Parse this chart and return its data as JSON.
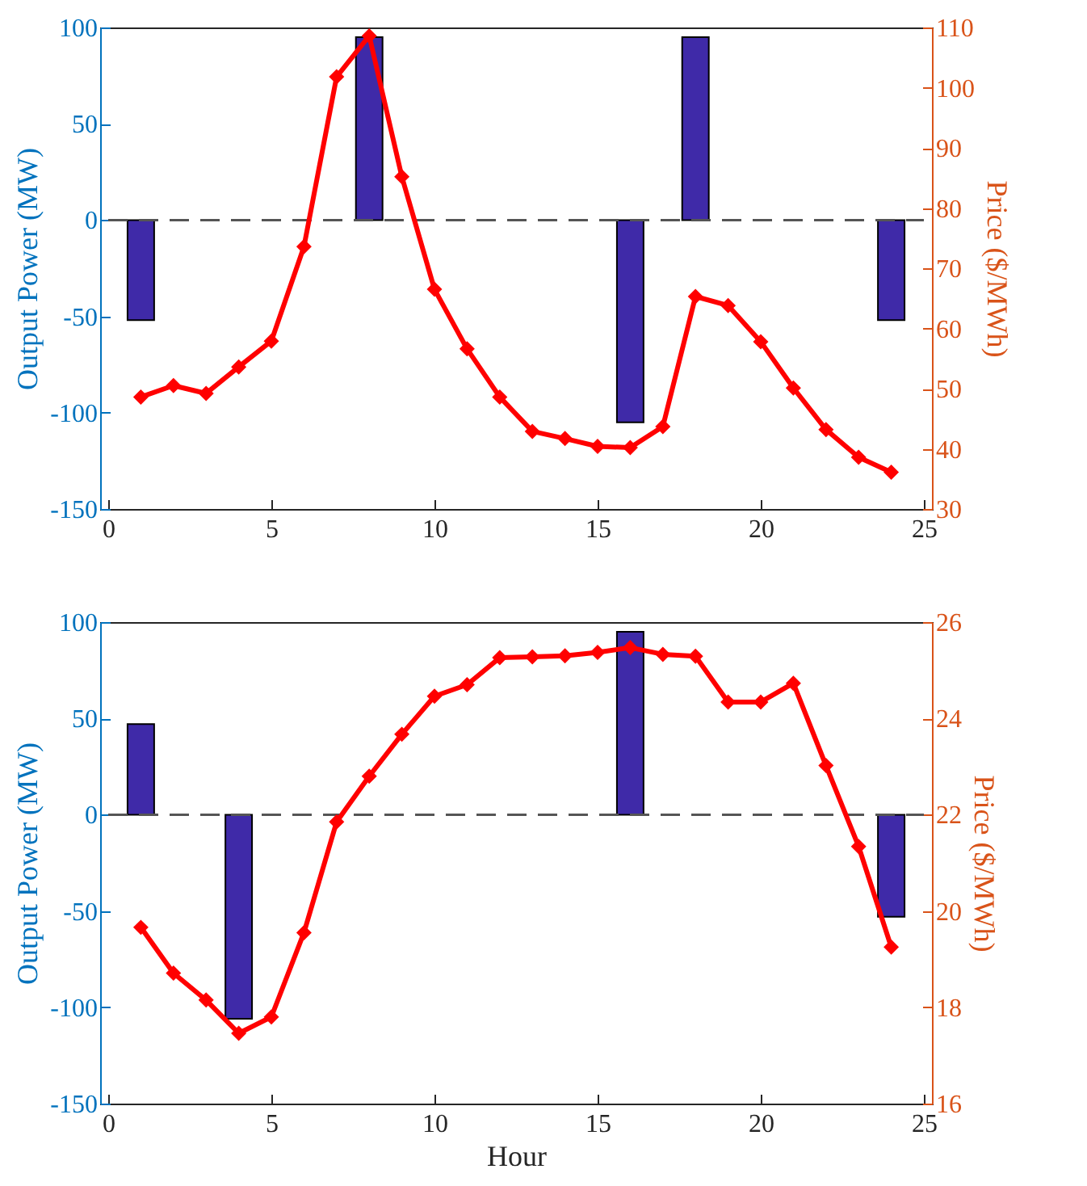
{
  "chart_data": [
    {
      "type": "bar",
      "ylabel": "Output Power (MW)",
      "y2label": "Price ($/MWh)",
      "x": [
        1,
        2,
        3,
        4,
        5,
        6,
        7,
        8,
        9,
        10,
        11,
        12,
        13,
        14,
        15,
        16,
        17,
        18,
        19,
        20,
        21,
        22,
        23,
        24
      ],
      "xlim": [
        0,
        25
      ],
      "xticks": [
        0,
        5,
        10,
        15,
        20,
        25
      ],
      "ylim": [
        -150,
        100
      ],
      "yticks": [
        -150,
        -100,
        -50,
        0,
        50,
        100
      ],
      "y2lim": [
        30,
        110
      ],
      "y2ticks": [
        30,
        40,
        50,
        60,
        70,
        80,
        90,
        100,
        110
      ],
      "marker": "diamond",
      "series": [
        {
          "color": "#3f2aa8",
          "values": [
            -52,
            null,
            null,
            null,
            null,
            null,
            null,
            95,
            null,
            null,
            null,
            null,
            null,
            null,
            null,
            -105,
            null,
            95,
            null,
            null,
            null,
            null,
            null,
            -52
          ]
        },
        {
          "type": "line",
          "axis": "y2",
          "color": "#ff0000",
          "values": [
            48.6,
            50.5,
            49.2,
            53.6,
            57.9,
            73.6,
            101.8,
            108.6,
            85.2,
            66.5,
            56.6,
            48.6,
            42.9,
            41.7,
            40.4,
            40.2,
            43.7,
            65.3,
            63.8,
            57.8,
            50.1,
            43.2,
            38.6,
            36.1
          ]
        }
      ],
      "ref_lines": [
        {
          "axis": "y",
          "value": 0,
          "color": "#555555",
          "line_style": "dashed"
        }
      ]
    },
    {
      "type": "bar",
      "xlabel": "Hour",
      "ylabel": "Output Power (MW)",
      "y2label": "Price ($/MWh)",
      "x": [
        1,
        2,
        3,
        4,
        5,
        6,
        7,
        8,
        9,
        10,
        11,
        12,
        13,
        14,
        15,
        16,
        17,
        18,
        19,
        20,
        21,
        22,
        23,
        24
      ],
      "xlim": [
        0,
        25
      ],
      "xticks": [
        0,
        5,
        10,
        15,
        20,
        25
      ],
      "ylim": [
        -150,
        100
      ],
      "yticks": [
        -150,
        -100,
        -50,
        0,
        50,
        100
      ],
      "y2lim": [
        16,
        26
      ],
      "y2ticks": [
        16,
        18,
        20,
        22,
        24,
        26
      ],
      "marker": "diamond",
      "series": [
        {
          "color": "#3f2aa8",
          "values": [
            47,
            null,
            null,
            -106,
            null,
            null,
            null,
            null,
            null,
            null,
            null,
            null,
            null,
            null,
            null,
            95,
            null,
            null,
            null,
            null,
            null,
            null,
            null,
            -53
          ]
        },
        {
          "type": "line",
          "axis": "y2",
          "color": "#ff0000",
          "values": [
            19.66,
            18.71,
            18.15,
            17.46,
            17.8,
            19.55,
            21.85,
            22.8,
            23.67,
            24.46,
            24.7,
            25.26,
            25.28,
            25.3,
            25.37,
            25.47,
            25.33,
            25.29,
            24.34,
            24.34,
            24.73,
            23.02,
            21.34,
            19.25
          ]
        }
      ],
      "ref_lines": [
        {
          "axis": "y",
          "value": 0,
          "color": "#555555",
          "line_style": "dashed"
        }
      ]
    }
  ]
}
